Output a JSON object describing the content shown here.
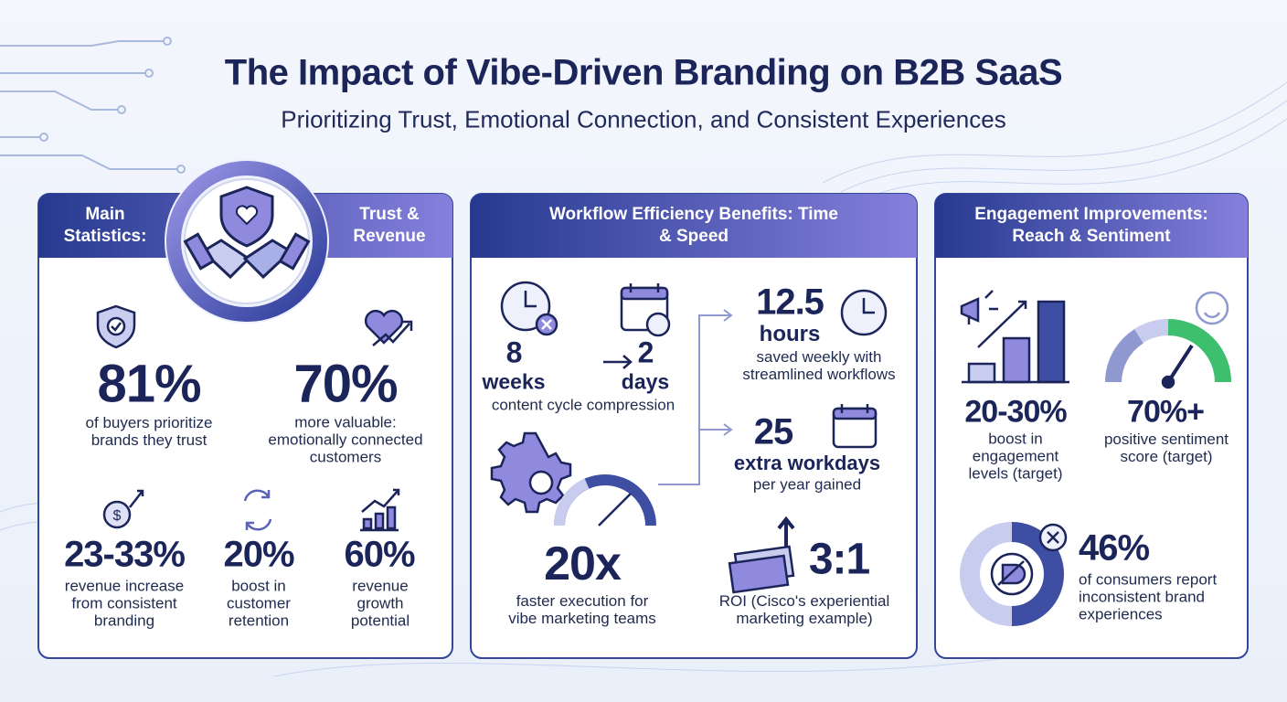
{
  "header": {
    "title": "The Impact of Vibe-Driven Branding on B2B SaaS",
    "subtitle": "Prioritizing Trust, Emotional Connection, and Consistent Experiences"
  },
  "panels": [
    {
      "heading_left": "Main Statistics:",
      "heading_right": "Trust & Revenue",
      "stats": [
        {
          "value": "81%",
          "label": "of buyers prioritize brands they trust"
        },
        {
          "value": "70%",
          "label": "more valuable: emotionally connected customers"
        },
        {
          "value": "23-33%",
          "label": "revenue increase from consistent branding"
        },
        {
          "value": "20%",
          "label": "boost in customer retention"
        },
        {
          "value": "60%",
          "label": "revenue growth potential"
        }
      ]
    },
    {
      "heading": "Workflow Efficiency Benefits: Time & Speed",
      "compression": {
        "from_value": "8",
        "from_unit": "weeks",
        "to_value": "2",
        "to_unit": "days",
        "label": "content cycle compression"
      },
      "stats": [
        {
          "value": "12.5",
          "unit": "hours",
          "label": "saved weekly with streamlined workflows"
        },
        {
          "value": "25",
          "unit": "extra workdays",
          "label": "per year gained"
        },
        {
          "value": "20x",
          "label": "faster execution for vibe marketing teams"
        },
        {
          "value": "3:1",
          "label": "ROI (Cisco's experiential marketing example)"
        }
      ]
    },
    {
      "heading": "Engagement Improvements: Reach & Sentiment",
      "stats": [
        {
          "value": "20-30%",
          "label": "boost in engagement levels (target)"
        },
        {
          "value": "70%+",
          "label": "positive sentiment score (target)"
        },
        {
          "value": "46%",
          "label": "of consumers report inconsistent brand experiences"
        }
      ]
    }
  ]
}
